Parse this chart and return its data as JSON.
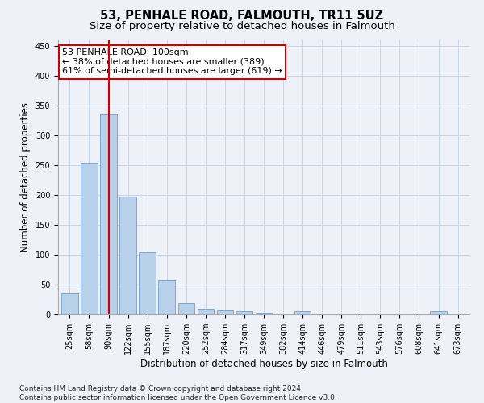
{
  "title": "53, PENHALE ROAD, FALMOUTH, TR11 5UZ",
  "subtitle": "Size of property relative to detached houses in Falmouth",
  "xlabel": "Distribution of detached houses by size in Falmouth",
  "ylabel": "Number of detached properties",
  "bar_color": "#b8d0ea",
  "bar_edge_color": "#6a9fcc",
  "vline_color": "#cc0000",
  "vline_x": 2.0,
  "categories": [
    "25sqm",
    "58sqm",
    "90sqm",
    "122sqm",
    "155sqm",
    "187sqm",
    "220sqm",
    "252sqm",
    "284sqm",
    "317sqm",
    "349sqm",
    "382sqm",
    "414sqm",
    "446sqm",
    "479sqm",
    "511sqm",
    "543sqm",
    "576sqm",
    "608sqm",
    "641sqm",
    "673sqm"
  ],
  "values": [
    35,
    255,
    335,
    197,
    104,
    57,
    19,
    10,
    7,
    5,
    3,
    0,
    5,
    0,
    0,
    0,
    0,
    0,
    0,
    5,
    0
  ],
  "annotation_title": "53 PENHALE ROAD: 100sqm",
  "annotation_line2": "← 38% of detached houses are smaller (389)",
  "annotation_line3": "61% of semi-detached houses are larger (619) →",
  "annotation_box_color": "#ffffff",
  "annotation_box_edge_color": "#cc0000",
  "ylim": [
    0,
    460
  ],
  "yticks": [
    0,
    50,
    100,
    150,
    200,
    250,
    300,
    350,
    400,
    450
  ],
  "footer_line1": "Contains HM Land Registry data © Crown copyright and database right 2024.",
  "footer_line2": "Contains public sector information licensed under the Open Government Licence v3.0.",
  "background_color": "#eef2f8",
  "grid_color": "#c8d4e8",
  "title_fontsize": 10.5,
  "subtitle_fontsize": 9.5,
  "axis_label_fontsize": 8.5,
  "tick_fontsize": 7,
  "footer_fontsize": 6.5,
  "annotation_fontsize": 8
}
